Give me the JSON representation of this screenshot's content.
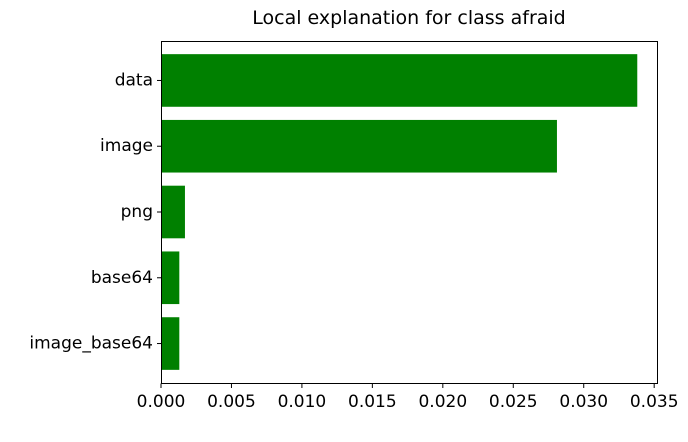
{
  "chart_data": {
    "type": "bar",
    "orientation": "horizontal",
    "title": "Local explanation for class afraid",
    "categories": [
      "data",
      "image",
      "png",
      "base64",
      "image_base64"
    ],
    "values": [
      0.0338,
      0.0281,
      0.0017,
      0.0013,
      0.0013
    ],
    "xlabel": "",
    "ylabel": "",
    "xlim": [
      0,
      0.0352
    ],
    "x_ticks": [
      0.0,
      0.005,
      0.01,
      0.015,
      0.02,
      0.025,
      0.03,
      0.035
    ],
    "x_tick_labels": [
      "0.000",
      "0.005",
      "0.010",
      "0.015",
      "0.020",
      "0.025",
      "0.030",
      "0.035"
    ],
    "bar_color": "#008000",
    "grid": false,
    "legend": "none"
  }
}
